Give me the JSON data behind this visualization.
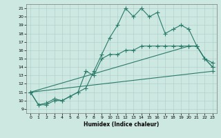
{
  "xlabel": "Humidex (Indice chaleur)",
  "bg_color": "#cce8e0",
  "line_color": "#2a7a6a",
  "grid_color": "#aacccc",
  "xlim": [
    -0.5,
    23.5
  ],
  "ylim": [
    8.5,
    21.5
  ],
  "xticks": [
    0,
    1,
    2,
    3,
    4,
    5,
    6,
    7,
    8,
    9,
    10,
    11,
    12,
    13,
    14,
    15,
    16,
    17,
    18,
    19,
    20,
    21,
    22,
    23
  ],
  "yticks": [
    9,
    10,
    11,
    12,
    13,
    14,
    15,
    16,
    17,
    18,
    19,
    20,
    21
  ],
  "lines": [
    {
      "x": [
        0,
        1,
        2,
        3,
        4,
        5,
        6,
        7,
        8,
        9,
        10,
        11,
        12,
        13,
        14,
        15,
        16,
        17,
        18,
        19,
        20,
        21,
        22,
        23
      ],
      "y": [
        11,
        9.5,
        9.5,
        10,
        10,
        10.5,
        11,
        11.5,
        13.5,
        15.5,
        17.5,
        19,
        21,
        20,
        21,
        20,
        20.5,
        18,
        18.5,
        19,
        18.5,
        16.5,
        15,
        14
      ]
    },
    {
      "x": [
        0,
        1,
        2,
        3,
        4,
        5,
        6,
        7,
        8,
        9,
        10,
        11,
        12,
        13,
        14,
        15,
        16,
        17,
        18,
        19,
        20,
        21,
        22,
        23
      ],
      "y": [
        11,
        9.5,
        9.7,
        10.2,
        10,
        10.5,
        11,
        13.5,
        13,
        15,
        15.5,
        15.5,
        16,
        16,
        16.5,
        16.5,
        16.5,
        16.5,
        16.5,
        16.5,
        16.5,
        16.5,
        15,
        14.5
      ]
    },
    {
      "x": [
        0,
        20,
        21,
        22,
        23
      ],
      "y": [
        11,
        16.5,
        16.5,
        15,
        14
      ]
    },
    {
      "x": [
        0,
        23
      ],
      "y": [
        11,
        13.5
      ]
    }
  ]
}
